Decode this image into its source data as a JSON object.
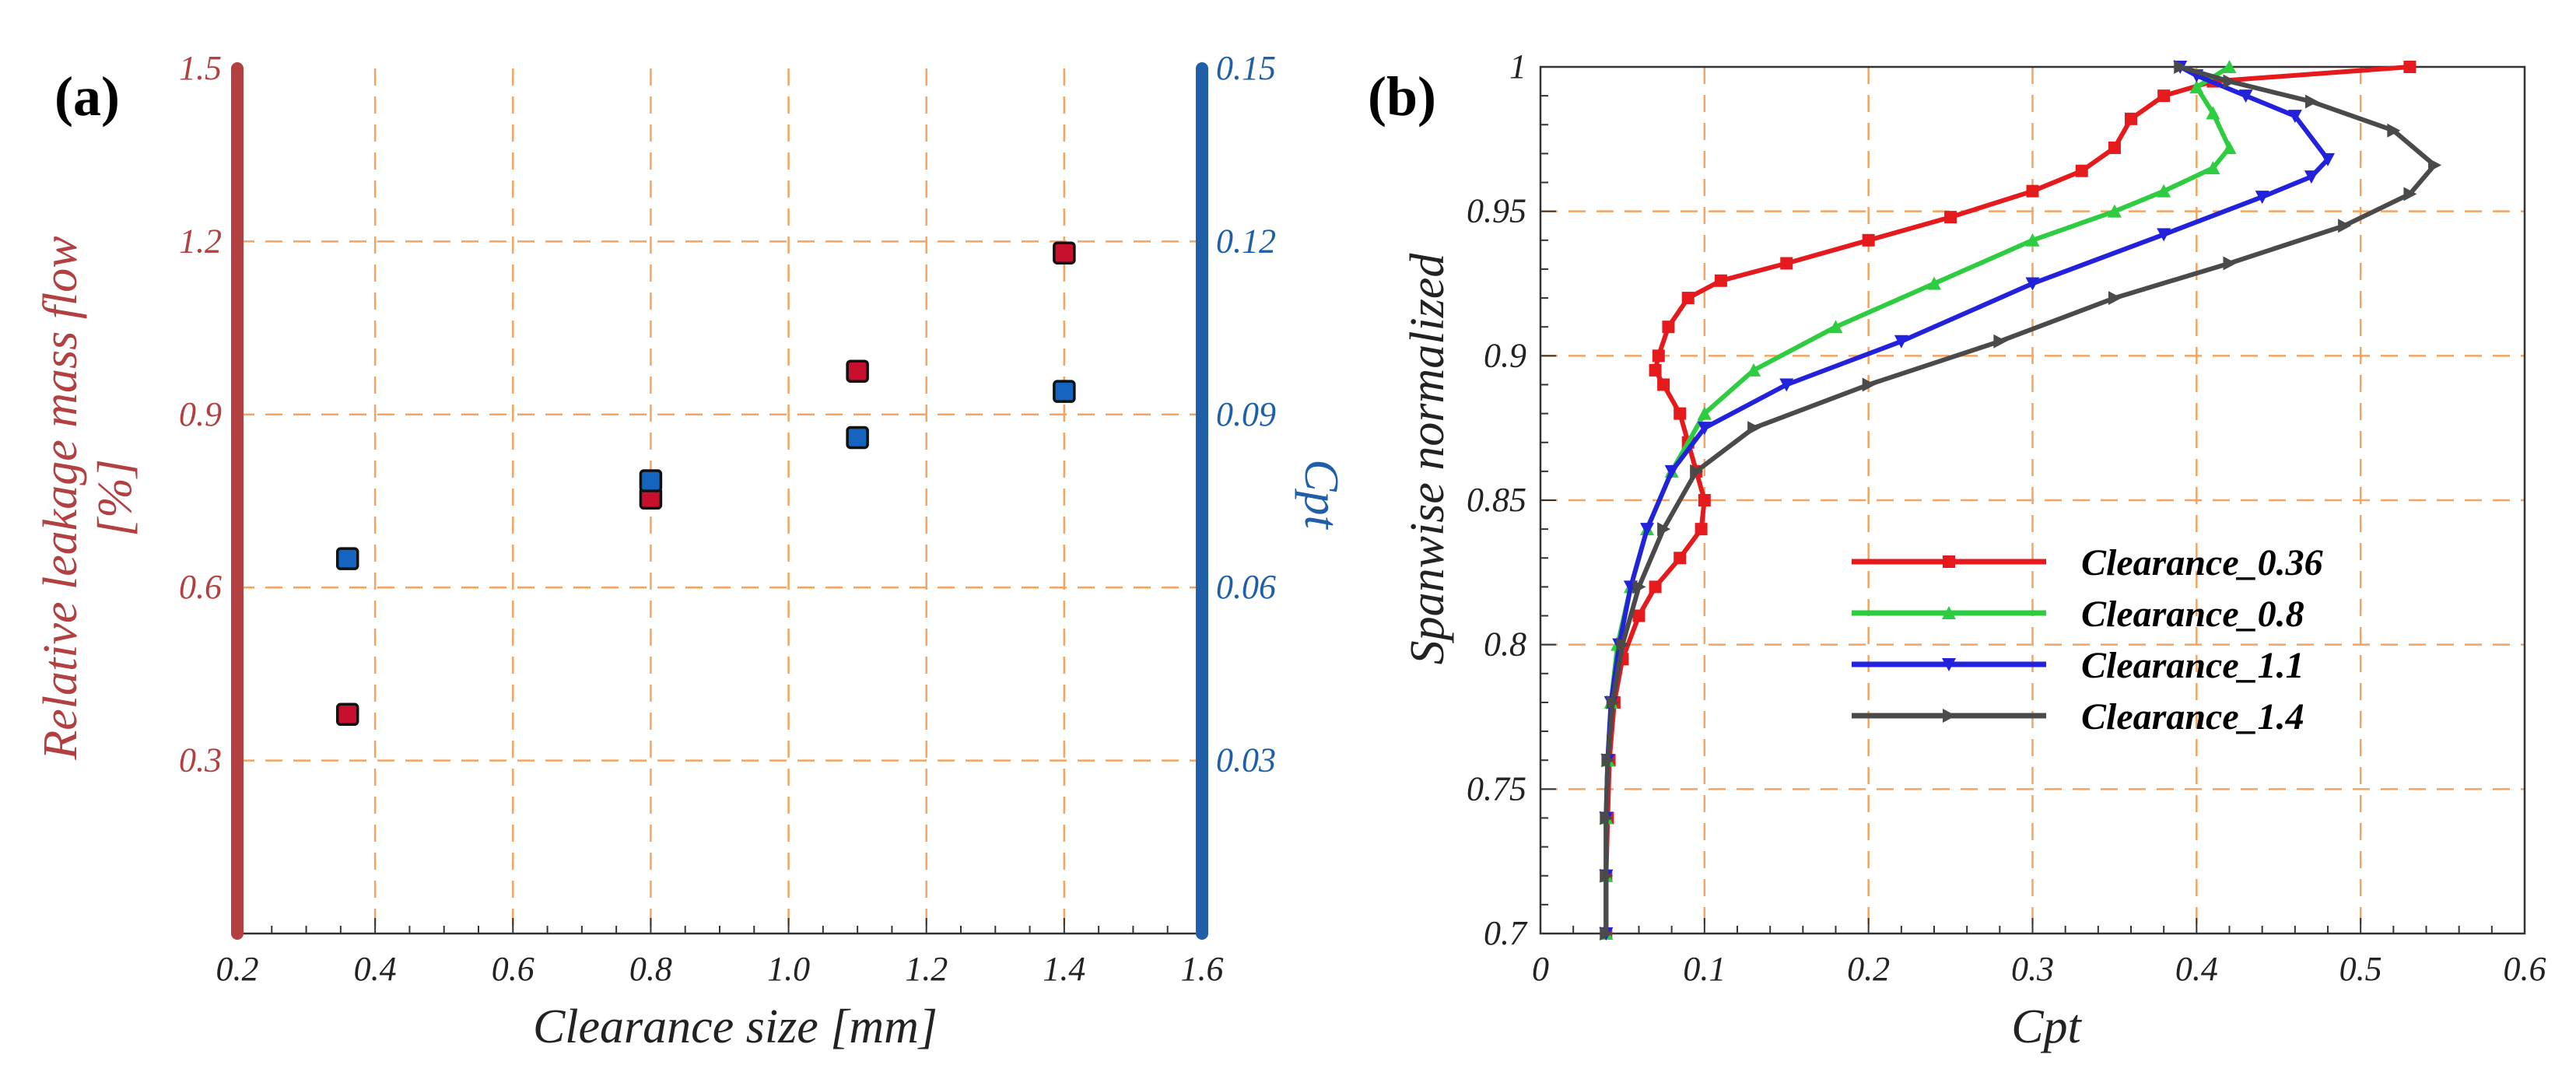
{
  "figure": {
    "left_label": "(a)",
    "right_label": "(b)"
  },
  "colors": {
    "left_axis": "#b24040",
    "right_axis": "#1f5fa8",
    "grid": "#f4a460",
    "red_marker": "#c8102e",
    "blue_marker": "#1565c0",
    "series": [
      "#e41a1c",
      "#2ecc40",
      "#2222dd",
      "#4a4a4a"
    ]
  },
  "chart_data": [
    {
      "type": "scatter",
      "panel": "(a)",
      "xlabel": "Clearance size [mm]",
      "ylabel_left": [
        "Relative leakage mass flow",
        "[%]"
      ],
      "ylabel_right": "Cpt",
      "xlim": [
        0.2,
        1.6
      ],
      "ylim_left": [
        0,
        1.5
      ],
      "ylim_right": [
        0,
        0.15
      ],
      "x_ticks": [
        "0.2",
        "0.4",
        "0.6",
        "0.8",
        "1.0",
        "1.2",
        "1.4",
        "1.6"
      ],
      "y_ticks_left": [
        "0.3",
        "0.6",
        "0.9",
        "1.2",
        "1.5"
      ],
      "y_ticks_right": [
        "0.03",
        "0.06",
        "0.09",
        "0.12",
        "0.15"
      ],
      "grid": true,
      "series": [
        {
          "name": "Relative leakage mass flow",
          "axis": "left",
          "x": [
            0.36,
            0.8,
            1.1,
            1.4
          ],
          "y": [
            0.38,
            0.755,
            0.975,
            1.18
          ]
        },
        {
          "name": "Cpt",
          "axis": "right",
          "x": [
            0.36,
            0.8,
            1.1,
            1.4
          ],
          "y": [
            0.065,
            0.0785,
            0.086,
            0.094
          ]
        }
      ]
    },
    {
      "type": "line",
      "panel": "(b)",
      "xlabel": "Cpt",
      "ylabel": "Spanwise normalized",
      "xlim": [
        0,
        0.6
      ],
      "ylim": [
        0.7,
        1
      ],
      "x_ticks": [
        "0",
        "0.1",
        "0.2",
        "0.3",
        "0.4",
        "0.5",
        "0.6"
      ],
      "y_ticks": [
        "0.7",
        "0.75",
        "0.8",
        "0.85",
        "0.9",
        "0.95",
        "1"
      ],
      "grid": true,
      "legend_position": "center-right",
      "series": [
        {
          "name": "Clearance_0.36",
          "marker": "square",
          "points": [
            [
              0.04,
              0.7
            ],
            [
              0.04,
              0.72
            ],
            [
              0.041,
              0.74
            ],
            [
              0.042,
              0.76
            ],
            [
              0.045,
              0.78
            ],
            [
              0.05,
              0.795
            ],
            [
              0.06,
              0.81
            ],
            [
              0.07,
              0.82
            ],
            [
              0.085,
              0.83
            ],
            [
              0.098,
              0.84
            ],
            [
              0.1,
              0.85
            ],
            [
              0.095,
              0.86
            ],
            [
              0.09,
              0.87
            ],
            [
              0.085,
              0.88
            ],
            [
              0.075,
              0.89
            ],
            [
              0.07,
              0.895
            ],
            [
              0.072,
              0.9
            ],
            [
              0.078,
              0.91
            ],
            [
              0.09,
              0.92
            ],
            [
              0.11,
              0.926
            ],
            [
              0.15,
              0.932
            ],
            [
              0.2,
              0.94
            ],
            [
              0.25,
              0.948
            ],
            [
              0.3,
              0.957
            ],
            [
              0.33,
              0.964
            ],
            [
              0.35,
              0.972
            ],
            [
              0.36,
              0.982
            ],
            [
              0.38,
              0.99
            ],
            [
              0.41,
              0.995
            ],
            [
              0.53,
              1.0
            ]
          ]
        },
        {
          "name": "Clearance_0.8",
          "marker": "triangle-up",
          "points": [
            [
              0.04,
              0.7
            ],
            [
              0.04,
              0.72
            ],
            [
              0.04,
              0.74
            ],
            [
              0.041,
              0.76
            ],
            [
              0.043,
              0.78
            ],
            [
              0.047,
              0.8
            ],
            [
              0.055,
              0.82
            ],
            [
              0.065,
              0.84
            ],
            [
              0.08,
              0.86
            ],
            [
              0.1,
              0.88
            ],
            [
              0.13,
              0.895
            ],
            [
              0.18,
              0.91
            ],
            [
              0.24,
              0.925
            ],
            [
              0.3,
              0.94
            ],
            [
              0.35,
              0.95
            ],
            [
              0.38,
              0.957
            ],
            [
              0.41,
              0.965
            ],
            [
              0.42,
              0.972
            ],
            [
              0.41,
              0.984
            ],
            [
              0.4,
              0.993
            ],
            [
              0.42,
              1.0
            ]
          ]
        },
        {
          "name": "Clearance_1.1",
          "marker": "triangle-down",
          "points": [
            [
              0.04,
              0.7
            ],
            [
              0.04,
              0.72
            ],
            [
              0.04,
              0.74
            ],
            [
              0.041,
              0.76
            ],
            [
              0.043,
              0.78
            ],
            [
              0.048,
              0.8
            ],
            [
              0.055,
              0.82
            ],
            [
              0.065,
              0.84
            ],
            [
              0.08,
              0.86
            ],
            [
              0.1,
              0.875
            ],
            [
              0.15,
              0.89
            ],
            [
              0.22,
              0.905
            ],
            [
              0.3,
              0.925
            ],
            [
              0.38,
              0.942
            ],
            [
              0.44,
              0.955
            ],
            [
              0.47,
              0.962
            ],
            [
              0.48,
              0.968
            ],
            [
              0.46,
              0.983
            ],
            [
              0.43,
              0.99
            ],
            [
              0.4,
              0.997
            ],
            [
              0.39,
              1.0
            ]
          ]
        },
        {
          "name": "Clearance_1.4",
          "marker": "triangle-right",
          "points": [
            [
              0.04,
              0.7
            ],
            [
              0.04,
              0.72
            ],
            [
              0.04,
              0.74
            ],
            [
              0.041,
              0.76
            ],
            [
              0.044,
              0.78
            ],
            [
              0.05,
              0.8
            ],
            [
              0.06,
              0.82
            ],
            [
              0.075,
              0.84
            ],
            [
              0.095,
              0.86
            ],
            [
              0.13,
              0.875
            ],
            [
              0.2,
              0.89
            ],
            [
              0.28,
              0.905
            ],
            [
              0.35,
              0.92
            ],
            [
              0.42,
              0.932
            ],
            [
              0.49,
              0.945
            ],
            [
              0.53,
              0.956
            ],
            [
              0.545,
              0.966
            ],
            [
              0.52,
              0.978
            ],
            [
              0.47,
              0.988
            ],
            [
              0.42,
              0.995
            ],
            [
              0.39,
              1.0
            ]
          ]
        }
      ]
    }
  ]
}
